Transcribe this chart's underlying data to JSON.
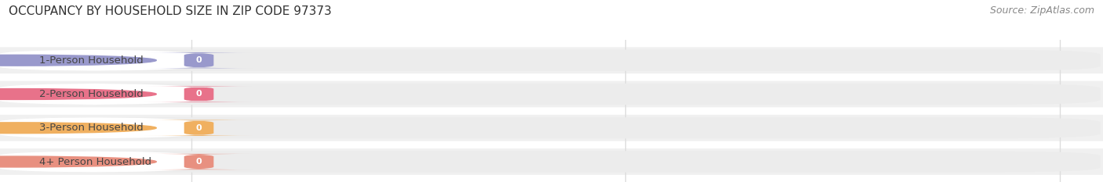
{
  "title": "OCCUPANCY BY HOUSEHOLD SIZE IN ZIP CODE 97373",
  "source": "Source: ZipAtlas.com",
  "categories": [
    "1-Person Household",
    "2-Person Household",
    "3-Person Household",
    "4+ Person Household"
  ],
  "values": [
    0,
    0,
    0,
    0
  ],
  "bar_colors": [
    "#9999cc",
    "#e8728a",
    "#f0b060",
    "#e89080"
  ],
  "label_bg_colors": [
    "#e0e0f4",
    "#f8d0d8",
    "#fce8c0",
    "#f8d0c8"
  ],
  "background_color": "#ffffff",
  "plot_bg_color": "#f0f0f0",
  "row_bg_color": "#f8f8f8",
  "title_fontsize": 11,
  "source_fontsize": 9,
  "tick_fontsize": 9,
  "label_fontsize": 9.5,
  "xlim_min": 0,
  "xlim_max": 1,
  "grid_color": "#dddddd"
}
